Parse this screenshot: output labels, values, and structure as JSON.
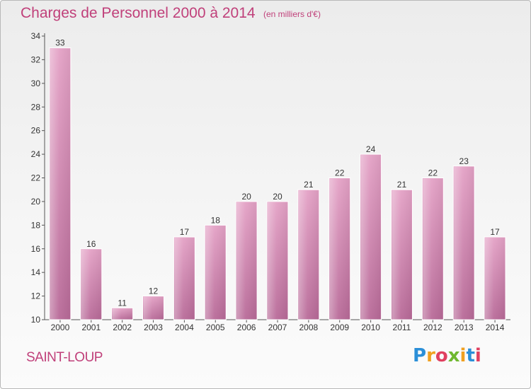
{
  "chart_data": {
    "type": "bar",
    "title": "Charges de Personnel 2000 à 2014",
    "subtitle": "(en milliers d'€)",
    "categories": [
      "2000",
      "2001",
      "2002",
      "2003",
      "2004",
      "2005",
      "2006",
      "2007",
      "2008",
      "2009",
      "2010",
      "2011",
      "2012",
      "2013",
      "2014"
    ],
    "values": [
      33,
      16,
      11,
      12,
      17,
      18,
      20,
      20,
      21,
      22,
      24,
      21,
      22,
      23,
      17
    ],
    "ylim": [
      10,
      34
    ],
    "yticks": [
      10,
      12,
      14,
      16,
      18,
      20,
      22,
      24,
      26,
      28,
      30,
      32,
      34
    ],
    "grid": false,
    "bar_color": "#c96a9f"
  },
  "footer": {
    "commune": "SAINT-LOUP",
    "brand_letters": [
      {
        "ch": "P",
        "color": "#2b8fd8"
      },
      {
        "ch": "r",
        "color": "#f0a020"
      },
      {
        "ch": "o",
        "color": "#e04060"
      },
      {
        "ch": "x",
        "color": "#70b830"
      },
      {
        "ch": "i",
        "color": "#f0a020"
      },
      {
        "ch": "t",
        "color": "#2b8fd8"
      },
      {
        "ch": "i",
        "color": "#e04060"
      }
    ]
  }
}
